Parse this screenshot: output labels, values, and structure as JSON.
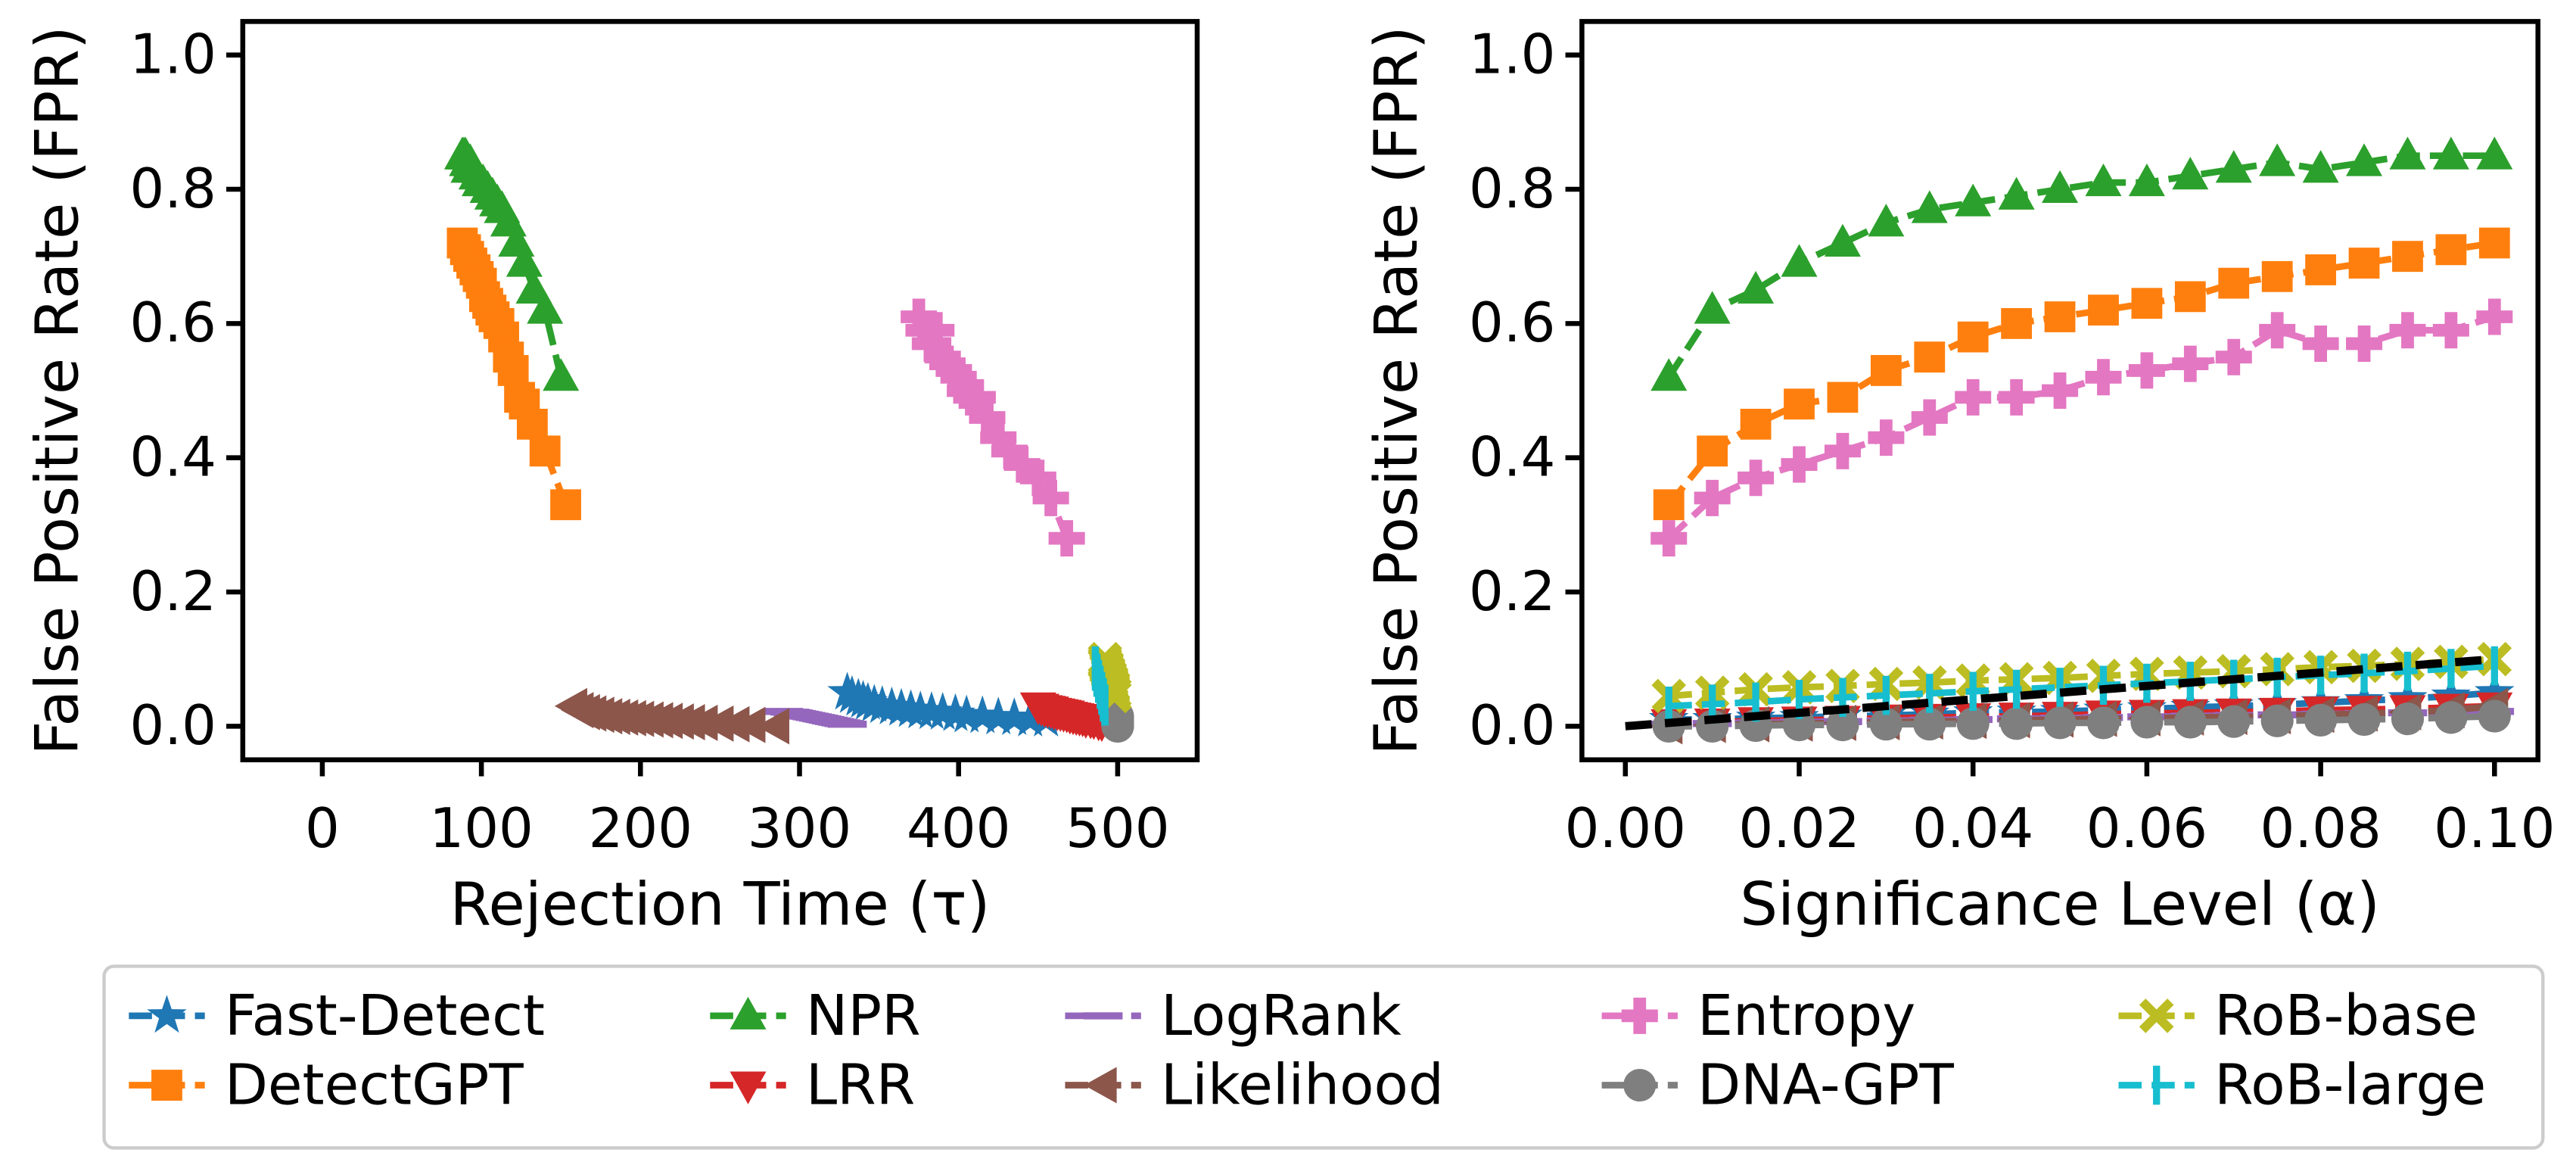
{
  "chart_data": [
    {
      "type": "line",
      "xlabel": "Rejection Time (τ)",
      "ylabel": "False Positive Rate (FPR)",
      "xlim": [
        -50,
        550
      ],
      "xticks": [
        0,
        100,
        200,
        300,
        400,
        500
      ],
      "ylim": [
        -0.05,
        1.05
      ],
      "yticks": [
        {
          "value": 0,
          "label": "0.0"
        },
        0.2,
        0.4,
        0.6,
        0.8,
        {
          "value": 1,
          "label": "1.0"
        }
      ],
      "series": [
        {
          "name": "Fast-Detect",
          "color": "#1f77b4",
          "marker": "star",
          "x": [
            455,
            445,
            435,
            425,
            415,
            405,
            398,
            390,
            383,
            376,
            370,
            364,
            358,
            352,
            347,
            343,
            340,
            337,
            333,
            330
          ],
          "values": [
            0.01,
            0.01,
            0.012,
            0.013,
            0.015,
            0.016,
            0.018,
            0.02,
            0.021,
            0.022,
            0.024,
            0.026,
            0.028,
            0.03,
            0.032,
            0.035,
            0.038,
            0.041,
            0.045,
            0.05
          ]
        },
        {
          "name": "DetectGPT",
          "color": "#ff7f0e",
          "marker": "square",
          "x": [
            153,
            140,
            132,
            127,
            124,
            120,
            117,
            114,
            111,
            108,
            106,
            104,
            102,
            100,
            98,
            96,
            94,
            92,
            90,
            88
          ],
          "values": [
            0.33,
            0.41,
            0.45,
            0.48,
            0.49,
            0.53,
            0.55,
            0.58,
            0.6,
            0.61,
            0.62,
            0.63,
            0.64,
            0.66,
            0.67,
            0.68,
            0.69,
            0.7,
            0.71,
            0.72
          ]
        },
        {
          "name": "NPR",
          "color": "#2ca02c",
          "marker": "triangle-up",
          "x": [
            150,
            140,
            133,
            127,
            122,
            117,
            113,
            110,
            107,
            104,
            101,
            99,
            97,
            95,
            93,
            92,
            91,
            90,
            89,
            88
          ],
          "values": [
            0.52,
            0.62,
            0.65,
            0.69,
            0.72,
            0.75,
            0.77,
            0.78,
            0.79,
            0.8,
            0.81,
            0.81,
            0.82,
            0.83,
            0.84,
            0.83,
            0.84,
            0.85,
            0.85,
            0.85
          ]
        },
        {
          "name": "LRR",
          "color": "#d62728",
          "marker": "triangle-down",
          "x": [
            490,
            488,
            485,
            483,
            480,
            478,
            476,
            474,
            472,
            470,
            468,
            466,
            464,
            462,
            460,
            458,
            456,
            454,
            452,
            450
          ],
          "values": [
            0.005,
            0.006,
            0.008,
            0.009,
            0.01,
            0.012,
            0.013,
            0.014,
            0.015,
            0.016,
            0.018,
            0.019,
            0.02,
            0.021,
            0.022,
            0.024,
            0.025,
            0.026,
            0.028,
            0.03
          ]
        },
        {
          "name": "LogRank",
          "color": "#9467bd",
          "marker": "hline",
          "x": [
            330,
            328,
            326,
            324,
            322,
            320,
            318,
            316,
            314,
            312,
            310,
            308,
            306,
            304,
            302,
            300,
            298,
            296,
            294,
            290
          ],
          "values": [
            0.003,
            0.004,
            0.005,
            0.006,
            0.007,
            0.008,
            0.009,
            0.01,
            0.011,
            0.012,
            0.013,
            0.014,
            0.015,
            0.016,
            0.017,
            0.018,
            0.019,
            0.02,
            0.021,
            0.022
          ]
        },
        {
          "name": "Likelihood",
          "color": "#8c564b",
          "marker": "triangle-left",
          "x": [
            285,
            270,
            260,
            250,
            240,
            232,
            225,
            218,
            212,
            206,
            200,
            195,
            190,
            185,
            180,
            175,
            170,
            166,
            162,
            158
          ],
          "values": [
            0.0,
            0.002,
            0.003,
            0.004,
            0.005,
            0.006,
            0.007,
            0.008,
            0.009,
            0.01,
            0.011,
            0.012,
            0.013,
            0.014,
            0.015,
            0.017,
            0.019,
            0.021,
            0.024,
            0.03
          ]
        },
        {
          "name": "Entropy",
          "color": "#e377c2",
          "marker": "plus",
          "x": [
            468,
            458,
            450,
            440,
            432,
            425,
            418,
            412,
            408,
            404,
            400,
            397,
            393,
            390,
            386,
            384,
            382,
            380,
            378,
            375
          ],
          "values": [
            0.28,
            0.34,
            0.37,
            0.39,
            0.41,
            0.43,
            0.46,
            0.49,
            0.49,
            0.5,
            0.52,
            0.53,
            0.54,
            0.55,
            0.59,
            0.57,
            0.57,
            0.59,
            0.59,
            0.61
          ]
        },
        {
          "name": "DNA-GPT",
          "color": "#7f7f7f",
          "marker": "circle",
          "x": [
            500,
            500,
            500,
            500,
            500,
            500,
            500,
            500,
            500,
            500,
            500,
            500,
            500,
            500,
            500,
            500,
            500,
            500,
            500,
            500
          ],
          "values": [
            0.0,
            0.0,
            0.001,
            0.002,
            0.002,
            0.003,
            0.003,
            0.004,
            0.004,
            0.005,
            0.005,
            0.006,
            0.006,
            0.007,
            0.008,
            0.009,
            0.01,
            0.011,
            0.013,
            0.015
          ]
        },
        {
          "name": "RoB-base",
          "color": "#bcbd22",
          "marker": "x",
          "x": [
            498,
            498,
            497,
            497,
            497,
            496,
            496,
            496,
            495,
            495,
            495,
            494,
            494,
            494,
            493,
            493,
            493,
            492,
            492,
            492
          ],
          "values": [
            0.045,
            0.05,
            0.055,
            0.058,
            0.06,
            0.063,
            0.065,
            0.068,
            0.07,
            0.072,
            0.075,
            0.078,
            0.08,
            0.082,
            0.085,
            0.088,
            0.09,
            0.093,
            0.096,
            0.1
          ]
        },
        {
          "name": "RoB-large",
          "color": "#17becf",
          "marker": "vline",
          "x": [
            492,
            492,
            491,
            491,
            491,
            490,
            490,
            490,
            489,
            489,
            489,
            488,
            488,
            488,
            487,
            487,
            487,
            486,
            486,
            486
          ],
          "values": [
            0.03,
            0.033,
            0.036,
            0.04,
            0.043,
            0.046,
            0.049,
            0.052,
            0.055,
            0.058,
            0.061,
            0.064,
            0.067,
            0.07,
            0.073,
            0.076,
            0.079,
            0.082,
            0.086,
            0.09
          ]
        }
      ]
    },
    {
      "type": "line",
      "xlabel": "Significance Level (α)",
      "ylabel": "False Positive Rate (FPR)",
      "xlim": [
        -0.005,
        0.105
      ],
      "xticks": [
        {
          "value": 0,
          "label": "0.00"
        },
        {
          "value": 0.02,
          "label": "0.02"
        },
        {
          "value": 0.04,
          "label": "0.04"
        },
        {
          "value": 0.06,
          "label": "0.06"
        },
        {
          "value": 0.08,
          "label": "0.08"
        },
        {
          "value": 0.1,
          "label": "0.10"
        }
      ],
      "ylim": [
        -0.05,
        1.05
      ],
      "yticks": [
        {
          "value": 0,
          "label": "0.0"
        },
        0.2,
        0.4,
        0.6,
        0.8,
        {
          "value": 1,
          "label": "1.0"
        }
      ],
      "x": [
        0.005,
        0.01,
        0.015,
        0.02,
        0.025,
        0.03,
        0.035,
        0.04,
        0.045,
        0.05,
        0.055,
        0.06,
        0.065,
        0.07,
        0.075,
        0.08,
        0.085,
        0.09,
        0.095,
        0.1
      ],
      "diagonal": {
        "color": "#000000",
        "x": [
          0,
          0.1
        ],
        "values": [
          0,
          0.1
        ]
      },
      "series": [
        {
          "name": "Fast-Detect",
          "color": "#1f77b4",
          "marker": "star",
          "values": [
            0.01,
            0.01,
            0.012,
            0.013,
            0.015,
            0.016,
            0.018,
            0.02,
            0.021,
            0.022,
            0.024,
            0.026,
            0.028,
            0.03,
            0.032,
            0.035,
            0.038,
            0.041,
            0.045,
            0.05
          ]
        },
        {
          "name": "DetectGPT",
          "color": "#ff7f0e",
          "marker": "square",
          "values": [
            0.33,
            0.41,
            0.45,
            0.48,
            0.49,
            0.53,
            0.55,
            0.58,
            0.6,
            0.61,
            0.62,
            0.63,
            0.64,
            0.66,
            0.67,
            0.68,
            0.69,
            0.7,
            0.71,
            0.72
          ]
        },
        {
          "name": "NPR",
          "color": "#2ca02c",
          "marker": "triangle-up",
          "values": [
            0.52,
            0.62,
            0.65,
            0.69,
            0.72,
            0.75,
            0.77,
            0.78,
            0.79,
            0.8,
            0.81,
            0.81,
            0.82,
            0.83,
            0.84,
            0.83,
            0.84,
            0.85,
            0.85,
            0.85
          ]
        },
        {
          "name": "LRR",
          "color": "#d62728",
          "marker": "triangle-down",
          "values": [
            0.005,
            0.006,
            0.008,
            0.009,
            0.01,
            0.012,
            0.013,
            0.014,
            0.015,
            0.016,
            0.018,
            0.019,
            0.02,
            0.021,
            0.022,
            0.024,
            0.025,
            0.026,
            0.028,
            0.03
          ]
        },
        {
          "name": "LogRank",
          "color": "#9467bd",
          "marker": "hline",
          "values": [
            0.003,
            0.004,
            0.005,
            0.006,
            0.007,
            0.008,
            0.009,
            0.01,
            0.011,
            0.012,
            0.013,
            0.014,
            0.015,
            0.016,
            0.017,
            0.018,
            0.019,
            0.02,
            0.021,
            0.022
          ]
        },
        {
          "name": "Likelihood",
          "color": "#8c564b",
          "marker": "triangle-left",
          "values": [
            0.0,
            0.002,
            0.003,
            0.004,
            0.005,
            0.006,
            0.007,
            0.008,
            0.009,
            0.01,
            0.011,
            0.012,
            0.013,
            0.014,
            0.015,
            0.017,
            0.019,
            0.021,
            0.024,
            0.03
          ]
        },
        {
          "name": "Entropy",
          "color": "#e377c2",
          "marker": "plus",
          "values": [
            0.28,
            0.34,
            0.37,
            0.39,
            0.41,
            0.43,
            0.46,
            0.49,
            0.49,
            0.5,
            0.52,
            0.53,
            0.54,
            0.55,
            0.59,
            0.57,
            0.57,
            0.59,
            0.59,
            0.61
          ]
        },
        {
          "name": "DNA-GPT",
          "color": "#7f7f7f",
          "marker": "circle",
          "values": [
            0.0,
            0.0,
            0.001,
            0.002,
            0.002,
            0.003,
            0.003,
            0.004,
            0.004,
            0.005,
            0.005,
            0.006,
            0.006,
            0.007,
            0.008,
            0.009,
            0.01,
            0.011,
            0.013,
            0.015
          ]
        },
        {
          "name": "RoB-base",
          "color": "#bcbd22",
          "marker": "x",
          "values": [
            0.045,
            0.05,
            0.055,
            0.058,
            0.06,
            0.063,
            0.065,
            0.068,
            0.07,
            0.072,
            0.075,
            0.078,
            0.08,
            0.082,
            0.085,
            0.088,
            0.09,
            0.093,
            0.096,
            0.1
          ]
        },
        {
          "name": "RoB-large",
          "color": "#17becf",
          "marker": "vline",
          "values": [
            0.03,
            0.033,
            0.036,
            0.04,
            0.043,
            0.046,
            0.049,
            0.052,
            0.055,
            0.058,
            0.061,
            0.064,
            0.067,
            0.07,
            0.073,
            0.076,
            0.079,
            0.082,
            0.086,
            0.09
          ]
        }
      ]
    }
  ]
}
